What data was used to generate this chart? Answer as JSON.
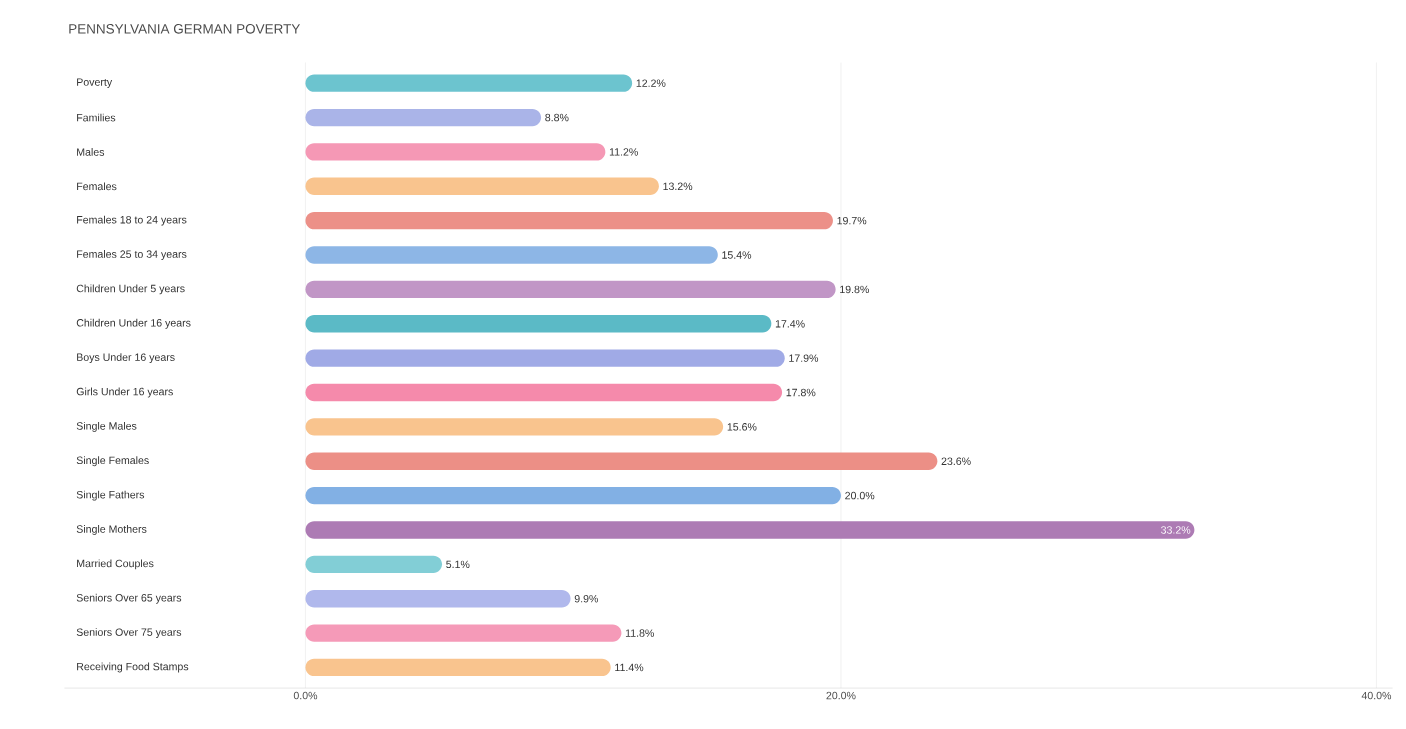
{
  "chart_data": {
    "type": "bar",
    "orientation": "horizontal",
    "title": "PENNSYLVANIA GERMAN POVERTY",
    "categories": [
      "Poverty",
      "Families",
      "Males",
      "Females",
      "Females 18 to 24 years",
      "Females 25 to 34 years",
      "Children Under 5 years",
      "Children Under 16 years",
      "Boys Under 16 years",
      "Girls Under 16 years",
      "Single Males",
      "Single Females",
      "Single Fathers",
      "Single Mothers",
      "Married Couples",
      "Seniors Over 65 years",
      "Seniors Over 75 years",
      "Receiving Food Stamps"
    ],
    "values": [
      12.2,
      8.8,
      11.2,
      13.2,
      19.7,
      15.4,
      19.8,
      17.4,
      17.9,
      17.8,
      15.6,
      23.6,
      20.0,
      33.2,
      5.1,
      9.9,
      11.8,
      11.4
    ],
    "value_labels": [
      "12.2%",
      "8.8%",
      "11.2%",
      "13.2%",
      "19.7%",
      "15.4%",
      "19.8%",
      "17.4%",
      "17.9%",
      "17.8%",
      "15.6%",
      "23.6%",
      "20.0%",
      "33.2%",
      "5.1%",
      "9.9%",
      "11.8%",
      "11.4%"
    ],
    "colors": [
      "#6cc4cf",
      "#aab4e8",
      "#f598b5",
      "#f9c48e",
      "#ec9088",
      "#8db6e6",
      "#c196c6",
      "#5bbac6",
      "#a0aae6",
      "#f58aab",
      "#f9c48e",
      "#ec8f86",
      "#82b0e4",
      "#ad7bb4",
      "#82ced6",
      "#b0b8ec",
      "#f59ab8",
      "#f9c48e"
    ],
    "xlim": [
      -9,
      40.6
    ],
    "xticks": [
      {
        "value": 0,
        "label": "0.0%"
      },
      {
        "value": 20,
        "label": "20.0%"
      },
      {
        "value": 40,
        "label": "40.0%"
      }
    ],
    "grid": "x"
  }
}
